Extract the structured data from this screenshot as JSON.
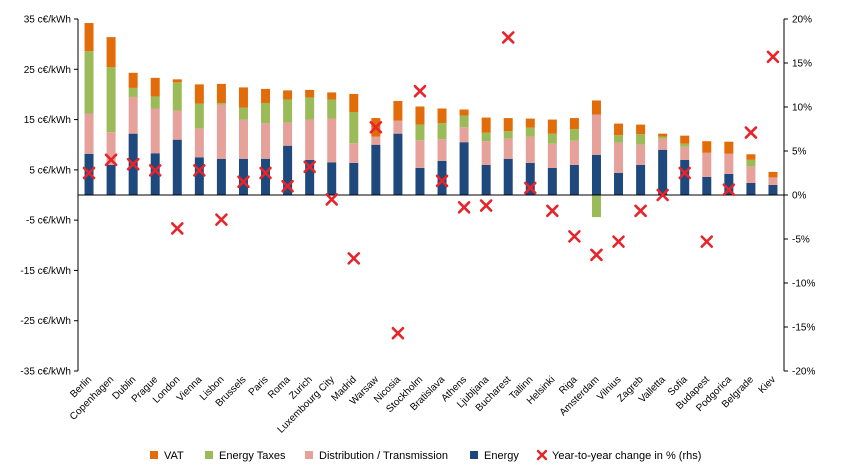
{
  "chart_data": {
    "type": "bar",
    "stacked": true,
    "title": "",
    "xlabel": "",
    "ylabel": "",
    "ylim": [
      -35,
      35
    ],
    "y_ticks": [
      -35,
      -25,
      -15,
      -5,
      5,
      15,
      25,
      35
    ],
    "y_tick_labels": [
      "-35 c€/kWh",
      "-25 c€/kWh",
      "-15 c€/kWh",
      "-5 c€/kWh",
      "5 c€/kWh",
      "15 c€/kWh",
      "25 c€/kWh",
      "35 c€/kWh"
    ],
    "y2lim": [
      -20,
      20
    ],
    "y2_ticks": [
      -20,
      -15,
      -10,
      -5,
      0,
      5,
      10,
      15,
      20
    ],
    "y2_tick_labels": [
      "-20%",
      "-15%",
      "-10%",
      "-5%",
      "0%",
      "5%",
      "10%",
      "15%",
      "20%"
    ],
    "legend_position": "bottom",
    "categories": [
      "Berlin",
      "Copenhagen",
      "Dublin",
      "Prague",
      "London",
      "Vienna",
      "Lisbon",
      "Brussels",
      "Paris",
      "Roma",
      "Zurich",
      "Luxembourg City",
      "Madrid",
      "Warsaw",
      "Nicosia",
      "Stockholm",
      "Bratislava",
      "Athens",
      "Ljubljana",
      "Bucharest",
      "Tallinn",
      "Helsinki",
      "Riga",
      "Amsterdam",
      "Vilnius",
      "Zagreb",
      "Valletta",
      "Sofia",
      "Budapest",
      "Podgorica",
      "Belgrade",
      "Kiev"
    ],
    "series": [
      {
        "name": "Energy",
        "color": "#1f497d",
        "values": [
          8.2,
          6.0,
          12.2,
          8.3,
          11.0,
          7.5,
          7.2,
          7.2,
          7.2,
          9.8,
          7.0,
          6.5,
          6.4,
          10.0,
          12.2,
          5.4,
          6.8,
          10.5,
          6.0,
          7.2,
          6.4,
          5.4,
          6.0,
          8.0,
          4.4,
          6.0,
          9.0,
          7.0,
          3.6,
          4.2,
          2.4,
          2.0
        ]
      },
      {
        "name": "Distribution / Transmission",
        "color": "#e6a19b",
        "values": [
          8.0,
          6.5,
          7.3,
          8.9,
          5.8,
          5.7,
          10.8,
          7.8,
          7.1,
          4.6,
          8.0,
          8.7,
          3.9,
          1.6,
          2.6,
          5.5,
          4.3,
          3.0,
          4.7,
          4.0,
          5.2,
          4.8,
          4.8,
          8.0,
          6.0,
          4.0,
          2.2,
          2.6,
          4.8,
          4.0,
          3.3,
          1.5
        ]
      },
      {
        "name": "Energy Taxes",
        "color": "#9bbb59",
        "values": [
          12.4,
          12.9,
          1.8,
          2.4,
          5.6,
          5.0,
          0.3,
          2.4,
          4.0,
          4.6,
          4.4,
          3.8,
          6.2,
          0.0,
          0.0,
          3.1,
          3.2,
          2.3,
          1.7,
          1.5,
          1.8,
          2.0,
          2.3,
          -4.4,
          1.5,
          2.1,
          0.4,
          0.6,
          0.0,
          0.0,
          1.3,
          0.0
        ]
      },
      {
        "name": "VAT",
        "color": "#e36c0a",
        "values": [
          5.6,
          6.0,
          3.0,
          3.7,
          0.6,
          3.8,
          3.8,
          4.0,
          2.8,
          1.8,
          1.5,
          1.4,
          3.6,
          3.7,
          3.9,
          3.6,
          2.9,
          1.2,
          3.0,
          2.6,
          1.8,
          2.8,
          2.2,
          2.8,
          2.3,
          1.9,
          0.6,
          1.6,
          2.3,
          2.4,
          1.1,
          1.1
        ]
      },
      {
        "name": "Year-to-year change in % (rhs)",
        "color": "#e8242a",
        "axis": "right",
        "marker": "x",
        "values": [
          2.5,
          4.0,
          3.5,
          2.8,
          -3.8,
          2.8,
          -2.8,
          1.5,
          2.5,
          1.0,
          3.2,
          -0.5,
          -7.2,
          7.7,
          -15.7,
          11.8,
          1.6,
          -1.4,
          -1.2,
          17.9,
          0.8,
          -1.8,
          -4.7,
          -6.8,
          -5.3,
          -1.8,
          0.0,
          2.5,
          -5.3,
          0.6,
          7.1,
          15.7
        ]
      }
    ]
  }
}
